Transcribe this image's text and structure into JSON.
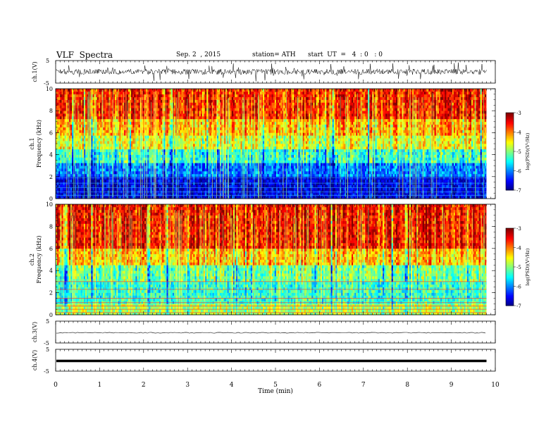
{
  "header": {
    "title": "VLF  Spectra",
    "date": "Sep. 2  , 2015",
    "station": "station= ATH",
    "start": "start  UT  =   4  : 0   : 0"
  },
  "chart_data": [
    {
      "type": "line",
      "panel": "ch1-waveform",
      "ylabel": "ch.1(V)",
      "ylim": [
        -5,
        5
      ],
      "yticks": [
        "5",
        "-5"
      ],
      "mean_level": 0,
      "color": "#000000"
    },
    {
      "type": "heatmap",
      "panel": "ch1-spectrogram",
      "ylabel": "ch.1\nFrequency  (kHz)",
      "ylim": [
        0,
        10
      ],
      "yticks": [
        "0",
        "2",
        "4",
        "6",
        "8",
        "10"
      ],
      "xlim": [
        0,
        10
      ],
      "data_end_min": 9.8,
      "colorbar": {
        "label": "log(PSD)(V²/Hz)",
        "range": [
          -7,
          -3
        ],
        "ticks": [
          "-3",
          "-4",
          "-5",
          "-6",
          "-7"
        ]
      },
      "bands_khz": [
        {
          "from": 0,
          "to": 2,
          "level": -6.6
        },
        {
          "from": 2,
          "to": 3.2,
          "level": -6.0
        },
        {
          "from": 3.2,
          "to": 4.5,
          "level": -5.3
        },
        {
          "from": 4.5,
          "to": 5.8,
          "level": -4.6
        },
        {
          "from": 5.8,
          "to": 7.2,
          "level": -4.2
        },
        {
          "from": 7.2,
          "to": 10,
          "level": -3.6
        }
      ]
    },
    {
      "type": "heatmap",
      "panel": "ch2-spectrogram",
      "ylabel": "ch.2\nFrequency  (kHz)",
      "ylim": [
        0,
        10
      ],
      "yticks": [
        "0",
        "2",
        "4",
        "6",
        "8",
        "10"
      ],
      "xlim": [
        0,
        10
      ],
      "data_end_min": 9.8,
      "colorbar": {
        "label": "log(PSD)(V²/Hz)",
        "range": [
          -7,
          -3
        ],
        "ticks": [
          "-3",
          "-4",
          "-5",
          "-6",
          "-7"
        ]
      },
      "bands_khz": [
        {
          "from": 0,
          "to": 1,
          "level": -4.8
        },
        {
          "from": 1,
          "to": 3,
          "level": -5.3
        },
        {
          "from": 3,
          "to": 4.6,
          "level": -5.0
        },
        {
          "from": 4.6,
          "to": 6,
          "level": -4.2
        },
        {
          "from": 6,
          "to": 10,
          "level": -3.5
        }
      ]
    },
    {
      "type": "line",
      "panel": "ch3-waveform",
      "ylabel": "ch.3(V)",
      "ylim": [
        -5,
        5
      ],
      "yticks": [
        "5",
        "-5"
      ],
      "mean_level": 0
    },
    {
      "type": "line",
      "panel": "ch4-waveform",
      "ylabel": "ch.4(V)",
      "ylim": [
        -5,
        5
      ],
      "yticks": [
        "5",
        "-5"
      ],
      "mean_level": 0
    }
  ],
  "x_axis": {
    "label": "Time  (min)",
    "xlim": [
      0,
      10
    ],
    "ticks": [
      "0",
      "1",
      "2",
      "3",
      "4",
      "5",
      "6",
      "7",
      "8",
      "9",
      "10"
    ]
  }
}
